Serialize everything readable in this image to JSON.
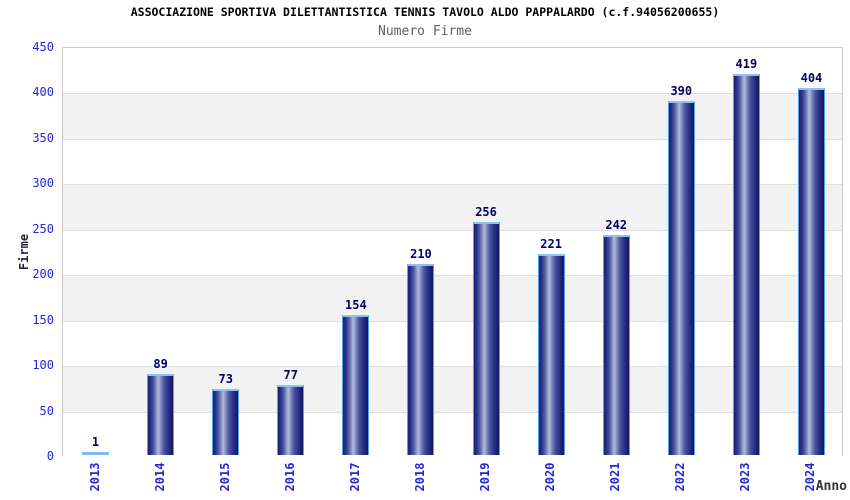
{
  "chart_data": {
    "type": "bar",
    "title": "ASSOCIAZIONE SPORTIVA DILETTANTISTICA TENNIS TAVOLO ALDO PAPPALARDO (c.f.94056200655)",
    "subtitle": "Numero Firme",
    "xlabel": "Anno",
    "ylabel": "Firme",
    "categories": [
      "2013",
      "2014",
      "2015",
      "2016",
      "2017",
      "2018",
      "2019",
      "2020",
      "2021",
      "2022",
      "2023",
      "2024"
    ],
    "values": [
      1,
      89,
      73,
      77,
      154,
      210,
      256,
      221,
      242,
      390,
      419,
      404
    ],
    "ylim": [
      0,
      450
    ],
    "ytick_step": 50,
    "grid": true,
    "legend_position": "none",
    "colors": {
      "bar_dark": "#1a2170",
      "bar_highlight": "#b2bbdd",
      "bar_border": "#5aa0e4",
      "bar_top_cap": "#8fc0ef",
      "tiny_bar": "#85b9ec",
      "value_label": "#000066",
      "tick_label": "#2626d9",
      "band_gray": "#f2f2f2",
      "band_white": "#ffffff",
      "gridline": "#dedede",
      "title": "#000000",
      "subtitle": "#5f5f5f"
    }
  }
}
